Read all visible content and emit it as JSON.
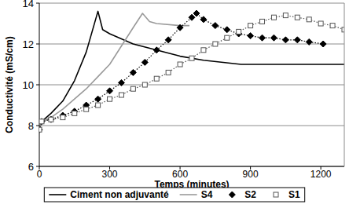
{
  "chart_data": {
    "type": "line",
    "x_label": "Temps (minutes)",
    "y_label": "Conductivité (mS/cm)",
    "xlim": [
      0,
      1300
    ],
    "ylim": [
      6,
      14
    ],
    "xticks": [
      0,
      300,
      600,
      900,
      1200
    ],
    "yticks": [
      6,
      8,
      10,
      12,
      14
    ],
    "grid": true,
    "legend": "bottom",
    "series": [
      {
        "name": "Ciment non adjuvanté",
        "color": "#000000",
        "line_style": "solid",
        "marker": "none",
        "x": [
          0,
          10,
          50,
          100,
          150,
          200,
          250,
          270,
          300,
          400,
          500,
          600,
          700,
          860,
          1300
        ],
        "values": [
          7.8,
          8.2,
          8.6,
          9.2,
          10.2,
          11.6,
          13.6,
          12.7,
          12.5,
          12.0,
          11.7,
          11.4,
          11.2,
          11.0,
          11.0
        ]
      },
      {
        "name": "S4",
        "color": "#9a9a9a",
        "line_style": "solid",
        "marker": "none",
        "x": [
          0,
          10,
          50,
          100,
          150,
          200,
          250,
          300,
          400,
          440,
          470,
          500,
          600,
          640
        ],
        "values": [
          7.8,
          8.2,
          8.4,
          8.8,
          9.3,
          9.8,
          10.4,
          11.0,
          12.8,
          13.5,
          13.1,
          13.0,
          12.9,
          12.9
        ]
      },
      {
        "name": "S2",
        "color": "#000000",
        "line_style": "dotted",
        "marker": "diamond",
        "x": [
          0,
          10,
          50,
          100,
          150,
          200,
          250,
          300,
          350,
          400,
          450,
          500,
          550,
          600,
          650,
          670,
          700,
          750,
          800,
          850,
          900,
          950,
          1000,
          1050,
          1100,
          1150,
          1210
        ],
        "values": [
          7.8,
          8.2,
          8.3,
          8.5,
          8.7,
          9.0,
          9.3,
          9.7,
          10.1,
          10.6,
          11.1,
          11.7,
          12.2,
          12.8,
          13.3,
          13.5,
          13.2,
          12.9,
          12.7,
          12.5,
          12.4,
          12.3,
          12.3,
          12.2,
          12.2,
          12.1,
          12.0
        ]
      },
      {
        "name": "S1",
        "color": "#555555",
        "line_style": "dotted",
        "marker": "square",
        "x": [
          0,
          10,
          50,
          100,
          150,
          200,
          250,
          300,
          350,
          400,
          450,
          500,
          550,
          600,
          650,
          700,
          750,
          800,
          850,
          900,
          950,
          1000,
          1050,
          1100,
          1150,
          1200,
          1250,
          1300
        ],
        "values": [
          7.8,
          8.2,
          8.3,
          8.4,
          8.6,
          8.8,
          9.0,
          9.3,
          9.5,
          9.8,
          10.0,
          10.3,
          10.6,
          11.0,
          11.3,
          11.7,
          12.0,
          12.3,
          12.6,
          12.9,
          13.1,
          13.3,
          13.4,
          13.3,
          13.2,
          13.0,
          12.9,
          12.7
        ]
      }
    ]
  }
}
